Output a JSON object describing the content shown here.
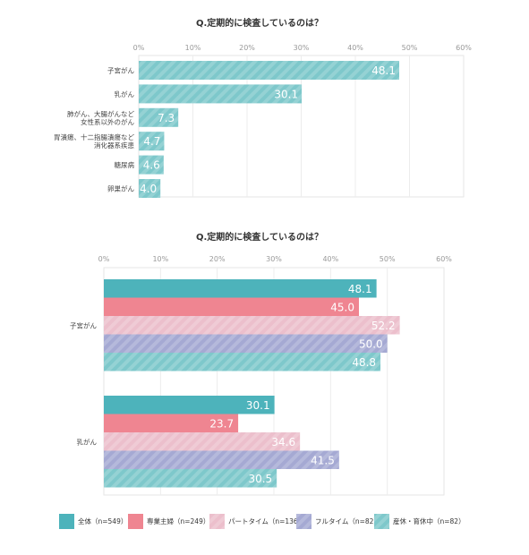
{
  "chart_data": [
    {
      "type": "bar",
      "orientation": "horizontal",
      "title": "Q.定期的に検査しているのは？",
      "xlim": [
        0,
        60
      ],
      "tick_labels": [
        "0%",
        "10%",
        "20%",
        "30%",
        "40%",
        "50%",
        "60%"
      ],
      "categories": [
        [
          "子宮がん"
        ],
        [
          "乳がん"
        ],
        [
          "肺がん、大腸がんなど",
          "女性系以外のがん"
        ],
        [
          "胃潰瘍、十二指腸潰瘍など",
          "消化器系疾患"
        ],
        [
          "糖尿病"
        ],
        [
          "卵巣がん"
        ]
      ],
      "values": [
        48.1,
        30.1,
        7.3,
        4.7,
        4.6,
        4.0
      ],
      "value_labels": [
        "48.1",
        "30.1",
        "7.3",
        "4.7",
        "4.6",
        "4.0"
      ],
      "color": "#7ec8cb",
      "grid": true
    },
    {
      "type": "bar",
      "orientation": "horizontal",
      "title": "Q.定期的に検査しているのは？",
      "xlim": [
        0,
        60
      ],
      "tick_labels": [
        "0%",
        "10%",
        "20%",
        "30%",
        "40%",
        "50%",
        "60%"
      ],
      "categories": [
        "子宮がん",
        "乳がん"
      ],
      "series": [
        {
          "name": "全体（n=549）",
          "values": [
            48.1,
            30.1
          ],
          "value_labels": [
            "48.1",
            "30.1"
          ],
          "color": "#4db3bb",
          "striped": false
        },
        {
          "name": "専業主婦（n=249）",
          "values": [
            45.0,
            23.7
          ],
          "value_labels": [
            "45.0",
            "23.7"
          ],
          "color": "#ef8591",
          "striped": false
        },
        {
          "name": "パートタイム（n=136）",
          "values": [
            52.2,
            34.6
          ],
          "value_labels": [
            "52.2",
            "34.6"
          ],
          "color": "#ecbfcc",
          "striped": true
        },
        {
          "name": "フルタイム（n=82）",
          "values": [
            50.0,
            41.5
          ],
          "value_labels": [
            "50.0",
            "41.5"
          ],
          "color": "#a5a9d3",
          "striped": true
        },
        {
          "name": "産休・育休中（n=82）",
          "values": [
            48.8,
            30.5
          ],
          "value_labels": [
            "48.8",
            "30.5"
          ],
          "color": "#7ec8cb",
          "striped": true
        }
      ],
      "legend": "bottom",
      "grid": true
    }
  ]
}
